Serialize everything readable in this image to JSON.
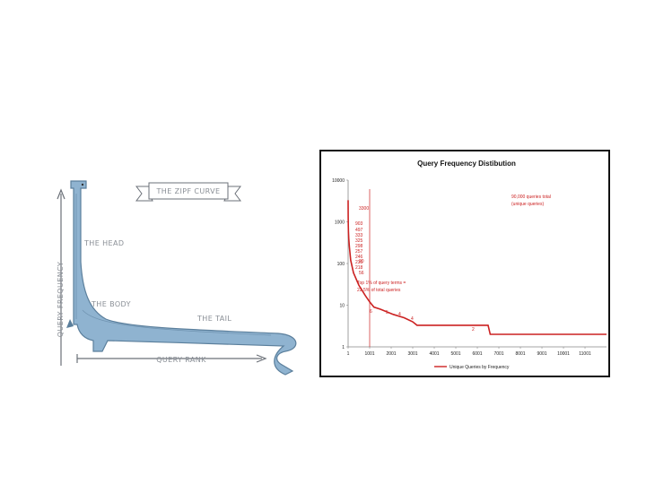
{
  "illustration": {
    "banner": "THE ZIPF CURVE",
    "y_label": "QUERY FREQUENCY",
    "x_label": "QUERY RANK",
    "labels": {
      "head": "THE HEAD",
      "body": "THE BODY",
      "tail": "THE TAIL"
    },
    "colors": {
      "creature": "#8fb3d0",
      "creature_dark": "#5b7f9c",
      "ink": "#6b7078"
    }
  },
  "chart_data": {
    "type": "line",
    "title": "Query Frequency Distibution",
    "yscale": "log",
    "ylim": [
      1,
      10000
    ],
    "y_ticks": [
      "10000",
      "1000",
      "100",
      "10",
      "1"
    ],
    "xlim": [
      1,
      12000
    ],
    "x_ticks": [
      "1",
      "1001",
      "2001",
      "3001",
      "4001",
      "5001",
      "6001",
      "7001",
      "8001",
      "9001",
      "10001",
      "11001"
    ],
    "series": [
      {
        "name": "Unique Queries by Frequency",
        "color": "#cc2222",
        "points": [
          [
            1,
            3300
          ],
          [
            4,
            1500
          ],
          [
            8,
            900
          ],
          [
            15,
            600
          ],
          [
            30,
            400
          ],
          [
            60,
            250
          ],
          [
            120,
            120
          ],
          [
            250,
            60
          ],
          [
            500,
            30
          ],
          [
            800,
            17
          ],
          [
            1000,
            12
          ],
          [
            1200,
            9
          ],
          [
            1500,
            8
          ],
          [
            2100,
            6
          ],
          [
            2600,
            5
          ],
          [
            3000,
            4
          ],
          [
            3200,
            3.3
          ],
          [
            6500,
            3.3
          ],
          [
            6600,
            2
          ],
          [
            12000,
            2
          ]
        ]
      }
    ],
    "vline_x": 1001,
    "point_labels": [
      "3300",
      "903",
      "497",
      "333",
      "325",
      "298",
      "257",
      "246",
      "235",
      "218",
      "56",
      "20",
      "6",
      "5",
      "4",
      "4",
      "2"
    ],
    "annotations": {
      "total_line1": "90,000 queries total",
      "total_line2": "(unique queries)",
      "top_line1": "Top 1% of query terms =",
      "top_line2": "22.5% of total queries"
    },
    "legend_position": "bottom",
    "grid": false
  }
}
